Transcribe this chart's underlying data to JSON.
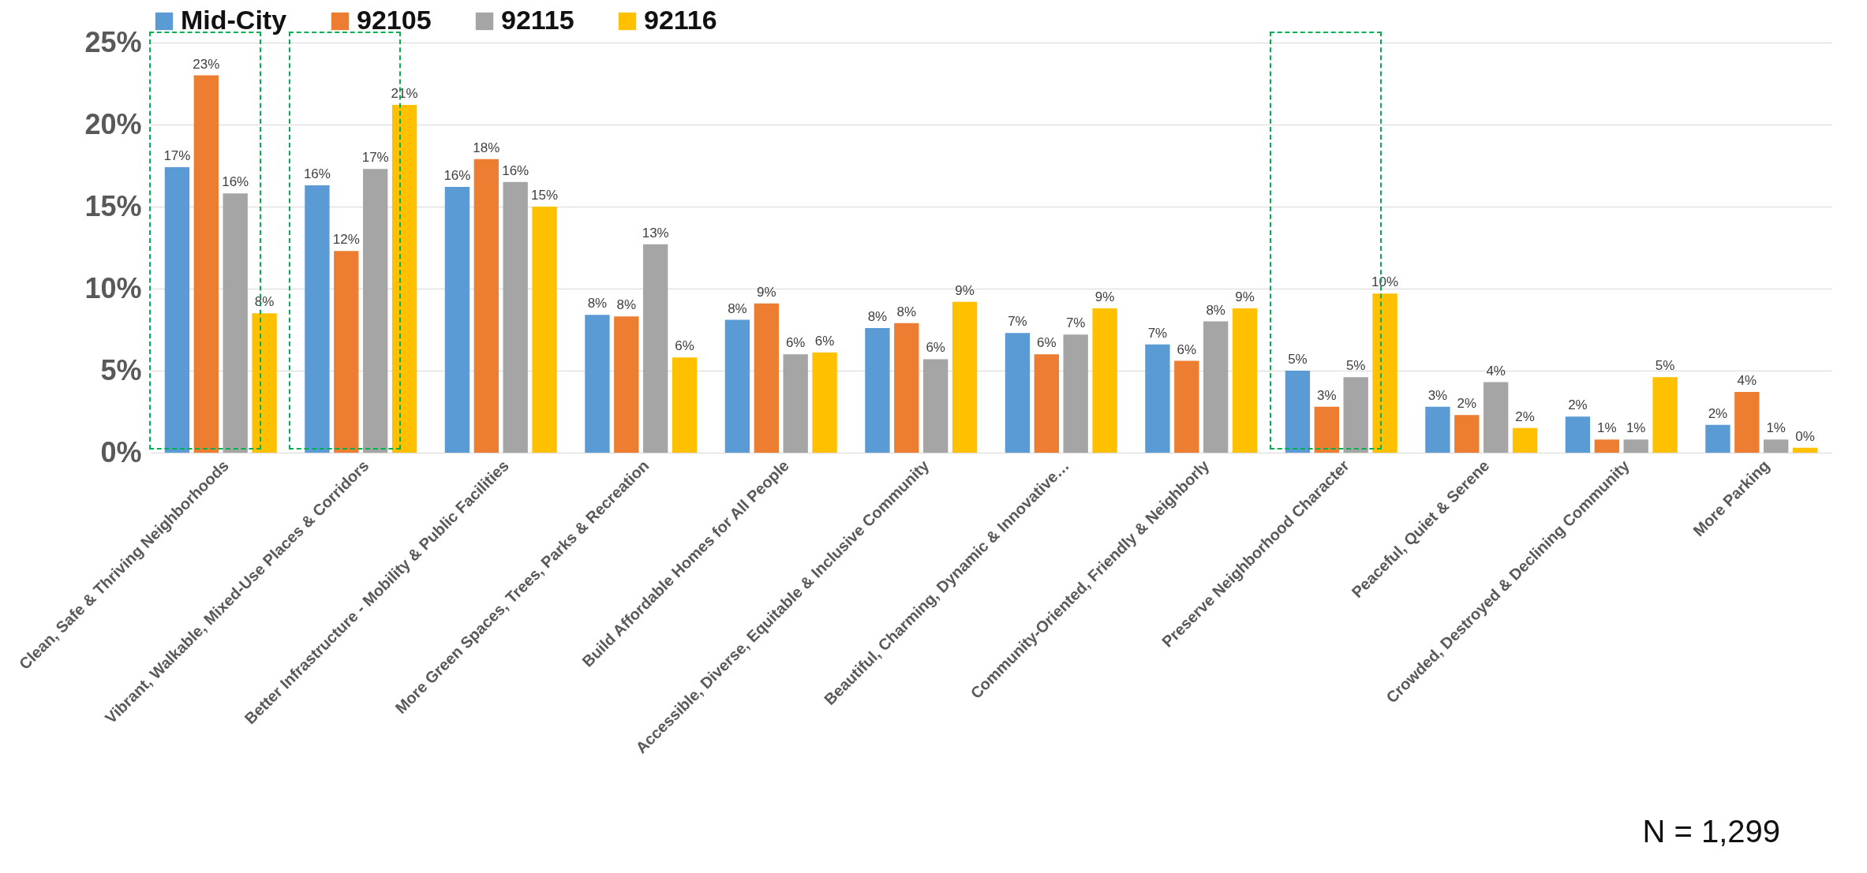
{
  "chart_data": {
    "type": "bar",
    "categories": [
      "Clean, Safe & Thriving Neighborhoods",
      "Vibrant, Walkable, Mixed-Use Places & Corridors",
      "Better Infrastructure - Mobility & Public Facilities",
      "More Green Spaces, Trees, Parks & Recreation",
      "Build Affordable Homes for All People",
      "Accessible, Diverse, Equitable & Inclusive Community",
      "Beautiful, Charming, Dynamic & Innovative…",
      "Community-Oriented, Friendly & Neighborly",
      "Preserve Neighborhood Character",
      "Peaceful, Quiet & Serene",
      "Crowded, Destroyed & Declining Community",
      "More Parking"
    ],
    "series": [
      {
        "name": "Mid-City",
        "color": "#5b9bd5",
        "values": [
          17.4,
          16.3,
          16.2,
          8.4,
          8.1,
          7.6,
          7.3,
          6.6,
          5.0,
          2.8,
          2.2,
          1.7
        ],
        "value_labels": [
          "17%",
          "16%",
          "16%",
          "8%",
          "8%",
          "8%",
          "7%",
          "7%",
          "5%",
          "3%",
          "2%",
          "2%"
        ]
      },
      {
        "name": "92105",
        "color": "#ed7d31",
        "values": [
          23.0,
          12.3,
          17.9,
          8.3,
          9.1,
          7.9,
          6.0,
          5.6,
          2.8,
          2.3,
          0.8,
          3.7
        ],
        "value_labels": [
          "23%",
          "12%",
          "18%",
          "8%",
          "9%",
          "8%",
          "6%",
          "6%",
          "3%",
          "2%",
          "1%",
          "4%"
        ]
      },
      {
        "name": "92115",
        "color": "#a5a5a5",
        "values": [
          15.8,
          17.3,
          16.5,
          12.7,
          6.0,
          5.7,
          7.2,
          8.0,
          4.6,
          4.3,
          0.8,
          0.8
        ],
        "value_labels": [
          "16%",
          "17%",
          "16%",
          "13%",
          "6%",
          "6%",
          "7%",
          "8%",
          "5%",
          "4%",
          "1%",
          "1%"
        ]
      },
      {
        "name": "92116",
        "color": "#ffc000",
        "values": [
          8.5,
          21.2,
          15.0,
          5.8,
          6.1,
          9.2,
          8.8,
          8.8,
          9.7,
          1.5,
          4.6,
          0.3
        ],
        "value_labels": [
          "8%",
          "21%",
          "15%",
          "6%",
          "6%",
          "9%",
          "9%",
          "9%",
          "10%",
          "2%",
          "5%",
          "0%"
        ]
      }
    ],
    "ylim": [
      0,
      25
    ],
    "yticks": [
      {
        "value": 0,
        "label": "0%"
      },
      {
        "value": 5,
        "label": "5%"
      },
      {
        "value": 10,
        "label": "10%"
      },
      {
        "value": 15,
        "label": "15%"
      },
      {
        "value": 20,
        "label": "20%"
      },
      {
        "value": 25,
        "label": "25%"
      }
    ],
    "grid": "y",
    "legend": "top",
    "annotations": [
      "N = 1,299"
    ]
  }
}
